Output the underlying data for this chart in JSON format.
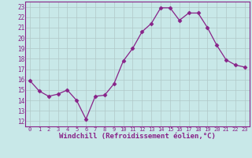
{
  "x": [
    0,
    1,
    2,
    3,
    4,
    5,
    6,
    7,
    8,
    9,
    10,
    11,
    12,
    13,
    14,
    15,
    16,
    17,
    18,
    19,
    20,
    21,
    22,
    23
  ],
  "y": [
    15.9,
    14.9,
    14.4,
    14.6,
    15.0,
    14.0,
    12.2,
    14.4,
    14.5,
    15.6,
    17.8,
    19.0,
    20.6,
    21.4,
    22.9,
    22.9,
    21.7,
    22.4,
    22.4,
    21.0,
    19.3,
    17.9,
    17.4,
    17.2
  ],
  "line_color": "#882288",
  "marker": "D",
  "marker_size": 2.5,
  "bg_color": "#c8e8e8",
  "grid_color": "#b0c8c8",
  "xlabel": "Windchill (Refroidissement éolien,°C)",
  "xlabel_fontsize": 6.5,
  "xtick_labels": [
    "0",
    "1",
    "2",
    "3",
    "4",
    "5",
    "6",
    "7",
    "8",
    "9",
    "10",
    "11",
    "12",
    "13",
    "14",
    "15",
    "16",
    "17",
    "18",
    "19",
    "20",
    "21",
    "22",
    "23"
  ],
  "ytick_labels": [
    "12",
    "13",
    "14",
    "15",
    "16",
    "17",
    "18",
    "19",
    "20",
    "21",
    "22",
    "23"
  ],
  "ylim": [
    11.5,
    23.5
  ],
  "xlim": [
    -0.5,
    23.5
  ]
}
